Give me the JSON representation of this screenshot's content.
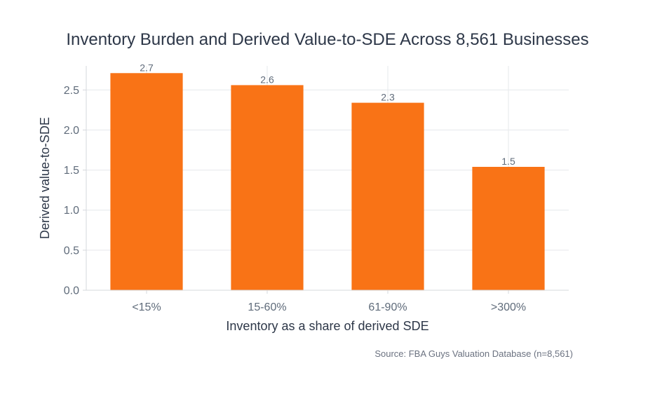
{
  "chart_data": {
    "type": "bar",
    "title": "Inventory Burden and Derived Value-to-SDE Across 8,561 Businesses",
    "xlabel": "Inventory as a share of derived SDE",
    "ylabel": "Derived value-to-SDE",
    "categories": [
      "<15%",
      "15-60%",
      "61-90%",
      ">300%"
    ],
    "values": [
      2.71,
      2.56,
      2.34,
      1.54
    ],
    "data_labels": [
      "2.7",
      "2.6",
      "2.3",
      "1.5"
    ],
    "ylim": [
      0,
      2.8
    ],
    "yticks": [
      0,
      0.5,
      1.0,
      1.5,
      2.0,
      2.5
    ],
    "ytick_labels": [
      "0.0",
      "0.5",
      "1.0",
      "1.5",
      "2.0",
      "2.5"
    ],
    "grid": true,
    "bar_color": "#f97316",
    "source": "Source: FBA Guys Valuation Database (n=8,561)"
  }
}
